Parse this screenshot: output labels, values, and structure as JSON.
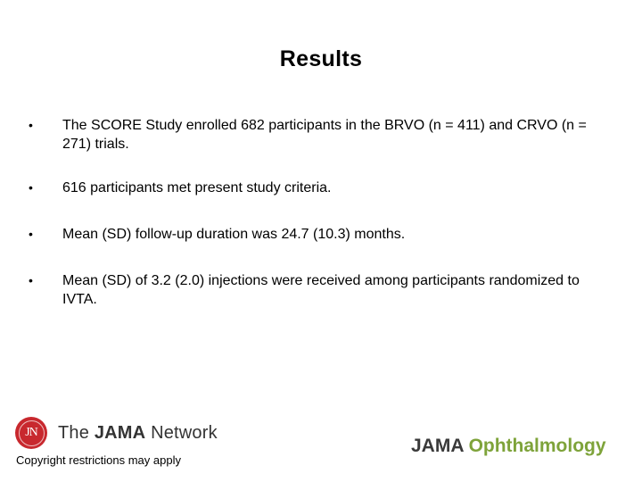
{
  "slide": {
    "title": "Results",
    "bullets": [
      {
        "marker": "•",
        "text": "The SCORE Study enrolled 682 participants in the BRVO (n = 411) and CRVO (n = 271) trials."
      },
      {
        "marker": "•",
        "text": "616 participants met present study criteria."
      },
      {
        "marker": "•",
        "text": "Mean (SD) follow-up duration was 24.7 (10.3) months."
      },
      {
        "marker": "•",
        "text": "Mean (SD) of 3.2 (2.0) injections were received among participants randomized to IVTA."
      }
    ]
  },
  "footer": {
    "network_logo": {
      "monogram": "JN",
      "prefix": "The ",
      "bold": "JAMA",
      "suffix": " Network"
    },
    "copyright": "Copyright restrictions may apply",
    "journal_logo": {
      "prefix": "JAMA ",
      "name": "Ophthalmology"
    }
  },
  "colors": {
    "network_red": "#c8282e",
    "journal_green": "#7ea33a",
    "wordmark_gray": "#333333"
  }
}
